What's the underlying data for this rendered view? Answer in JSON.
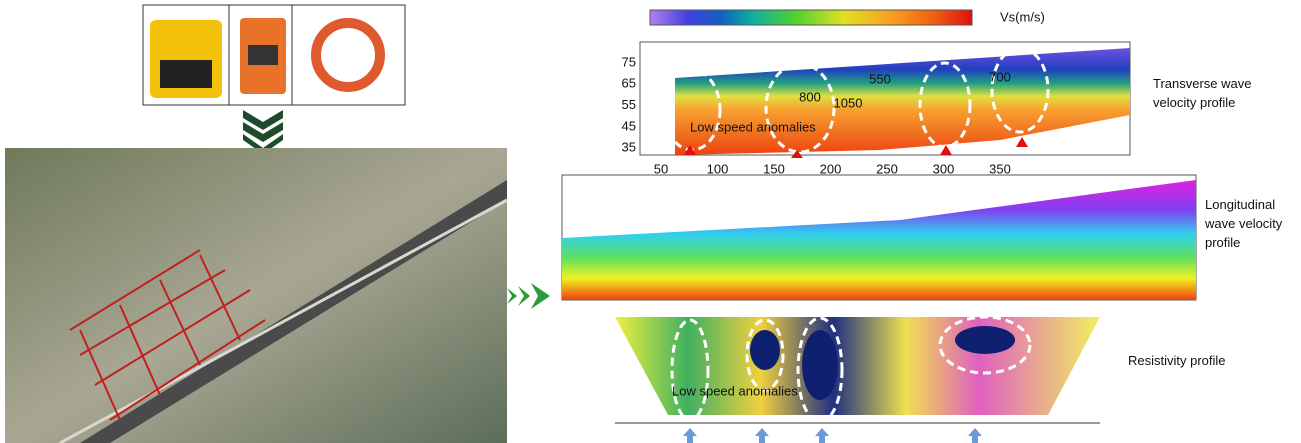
{
  "legend": {
    "label": "Vs(m/s)"
  },
  "transverse": {
    "label": "Transverse wave velocity profile",
    "y_ticks": [
      "75",
      "65",
      "55",
      "45",
      "35"
    ],
    "x_ticks": [
      "50",
      "100",
      "150",
      "200",
      "250",
      "300",
      "350"
    ],
    "contours": [
      "550",
      "800",
      "1050",
      "700"
    ],
    "annotation": "Low speed anomalies"
  },
  "longitudinal": {
    "label": "Longitudinal wave velocity profile"
  },
  "resistivity": {
    "label": "Resistivity profile",
    "annotation": "Low speed anomalies"
  }
}
